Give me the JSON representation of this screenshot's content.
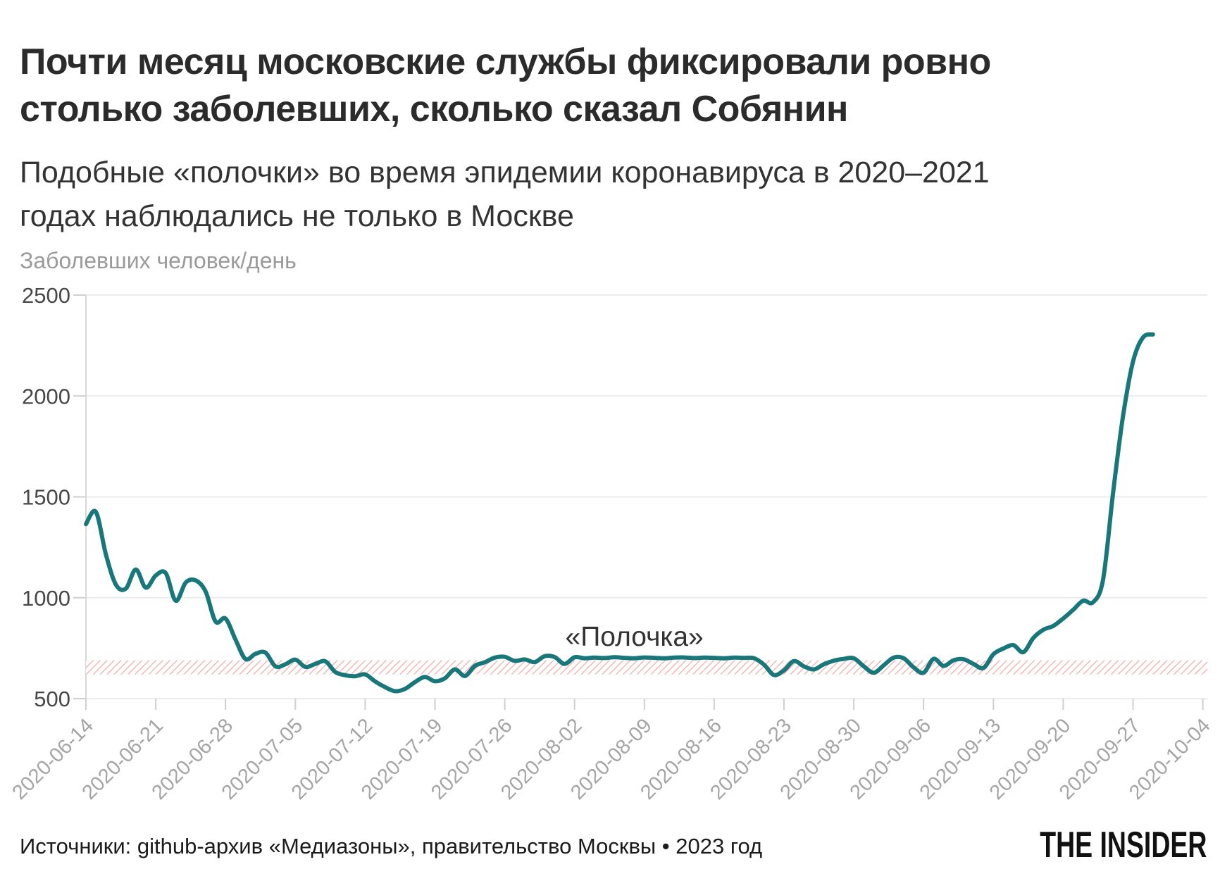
{
  "header": {
    "title": "Почти месяц московские службы фиксировали ровно столько заболевших, сколько сказал Собянин",
    "subtitle": "Подобные «полочки» во время эпидемии коронавируса в 2020–2021 годах наблюдались не только в Москве"
  },
  "chart_data": {
    "type": "line",
    "title": "Почти месяц московские службы фиксировали ровно столько заболевших, сколько сказал Собянин",
    "ylabel": "Заболевших человек/день",
    "xlabel": "",
    "ylim": [
      500,
      2500
    ],
    "y_ticks": [
      500,
      1000,
      1500,
      2000,
      2500
    ],
    "x_tick_labels": [
      "2020-06-14",
      "2020-06-21",
      "2020-06-28",
      "2020-07-05",
      "2020-07-12",
      "2020-07-19",
      "2020-07-26",
      "2020-08-02",
      "2020-08-09",
      "2020-08-16",
      "2020-08-23",
      "2020-08-30",
      "2020-09-06",
      "2020-09-13",
      "2020-09-20",
      "2020-09-27",
      "2020-10-04"
    ],
    "grid": "horizontal",
    "legend": "none",
    "colors": {
      "line": "#17777a",
      "hatch": "#f2aea8"
    },
    "shelf_band": {
      "from": 620,
      "to": 690,
      "style": "hatched",
      "label": "«Полочка»",
      "label_anchor_date": "2020-08-08",
      "label_value": 762
    },
    "series": [
      {
        "id": "daily-cases",
        "points": [
          [
            "2020-06-14",
            1365
          ],
          [
            "2020-06-15",
            1425
          ],
          [
            "2020-06-16",
            1215
          ],
          [
            "2020-06-17",
            1065
          ],
          [
            "2020-06-18",
            1045
          ],
          [
            "2020-06-19",
            1140
          ],
          [
            "2020-06-20",
            1050
          ],
          [
            "2020-06-21",
            1110
          ],
          [
            "2020-06-22",
            1122
          ],
          [
            "2020-06-23",
            985
          ],
          [
            "2020-06-24",
            1075
          ],
          [
            "2020-06-25",
            1086
          ],
          [
            "2020-06-26",
            1031
          ],
          [
            "2020-06-27",
            882
          ],
          [
            "2020-06-28",
            897
          ],
          [
            "2020-06-29",
            792
          ],
          [
            "2020-06-30",
            696
          ],
          [
            "2020-07-01",
            722
          ],
          [
            "2020-07-02",
            728
          ],
          [
            "2020-07-03",
            660
          ],
          [
            "2020-07-04",
            670
          ],
          [
            "2020-07-05",
            693
          ],
          [
            "2020-07-06",
            657
          ],
          [
            "2020-07-07",
            672
          ],
          [
            "2020-07-08",
            685
          ],
          [
            "2020-07-09",
            632
          ],
          [
            "2020-07-10",
            616
          ],
          [
            "2020-07-11",
            611
          ],
          [
            "2020-07-12",
            620
          ],
          [
            "2020-07-13",
            585
          ],
          [
            "2020-07-14",
            557
          ],
          [
            "2020-07-15",
            537
          ],
          [
            "2020-07-16",
            548
          ],
          [
            "2020-07-17",
            582
          ],
          [
            "2020-07-18",
            607
          ],
          [
            "2020-07-19",
            586
          ],
          [
            "2020-07-20",
            601
          ],
          [
            "2020-07-21",
            645
          ],
          [
            "2020-07-22",
            612
          ],
          [
            "2020-07-23",
            662
          ],
          [
            "2020-07-24",
            680
          ],
          [
            "2020-07-25",
            703
          ],
          [
            "2020-07-26",
            707
          ],
          [
            "2020-07-27",
            687
          ],
          [
            "2020-07-28",
            694
          ],
          [
            "2020-07-29",
            681
          ],
          [
            "2020-07-30",
            710
          ],
          [
            "2020-07-31",
            706
          ],
          [
            "2020-08-01",
            672
          ],
          [
            "2020-08-02",
            705
          ],
          [
            "2020-08-03",
            700
          ],
          [
            "2020-08-04",
            703
          ],
          [
            "2020-08-05",
            701
          ],
          [
            "2020-08-06",
            705
          ],
          [
            "2020-08-07",
            702
          ],
          [
            "2020-08-08",
            700
          ],
          [
            "2020-08-09",
            704
          ],
          [
            "2020-08-10",
            702
          ],
          [
            "2020-08-11",
            700
          ],
          [
            "2020-08-12",
            703
          ],
          [
            "2020-08-13",
            704
          ],
          [
            "2020-08-14",
            701
          ],
          [
            "2020-08-15",
            703
          ],
          [
            "2020-08-16",
            702
          ],
          [
            "2020-08-17",
            700
          ],
          [
            "2020-08-18",
            703
          ],
          [
            "2020-08-19",
            702
          ],
          [
            "2020-08-20",
            700
          ],
          [
            "2020-08-21",
            668
          ],
          [
            "2020-08-22",
            617
          ],
          [
            "2020-08-23",
            640
          ],
          [
            "2020-08-24",
            686
          ],
          [
            "2020-08-25",
            660
          ],
          [
            "2020-08-26",
            645
          ],
          [
            "2020-08-27",
            670
          ],
          [
            "2020-08-28",
            688
          ],
          [
            "2020-08-29",
            697
          ],
          [
            "2020-08-30",
            700
          ],
          [
            "2020-08-31",
            660
          ],
          [
            "2020-09-01",
            628
          ],
          [
            "2020-09-02",
            665
          ],
          [
            "2020-09-03",
            703
          ],
          [
            "2020-09-04",
            700
          ],
          [
            "2020-09-05",
            655
          ],
          [
            "2020-09-06",
            628
          ],
          [
            "2020-09-07",
            697
          ],
          [
            "2020-09-08",
            662
          ],
          [
            "2020-09-09",
            690
          ],
          [
            "2020-09-10",
            695
          ],
          [
            "2020-09-11",
            672
          ],
          [
            "2020-09-12",
            652
          ],
          [
            "2020-09-13",
            720
          ],
          [
            "2020-09-14",
            748
          ],
          [
            "2020-09-15",
            765
          ],
          [
            "2020-09-16",
            730
          ],
          [
            "2020-09-17",
            800
          ],
          [
            "2020-09-18",
            841
          ],
          [
            "2020-09-19",
            860
          ],
          [
            "2020-09-20",
            897
          ],
          [
            "2020-09-21",
            940
          ],
          [
            "2020-09-22",
            985
          ],
          [
            "2020-09-23",
            978
          ],
          [
            "2020-09-24",
            1090
          ],
          [
            "2020-09-25",
            1520
          ],
          [
            "2020-09-26",
            1900
          ],
          [
            "2020-09-27",
            2170
          ],
          [
            "2020-09-28",
            2290
          ],
          [
            "2020-09-29",
            2305
          ]
        ]
      }
    ]
  },
  "footer": {
    "source": "Источники: github-архив «Медиазоны», правительство Москвы • 2023 год",
    "logo": "THE INSIDER"
  }
}
